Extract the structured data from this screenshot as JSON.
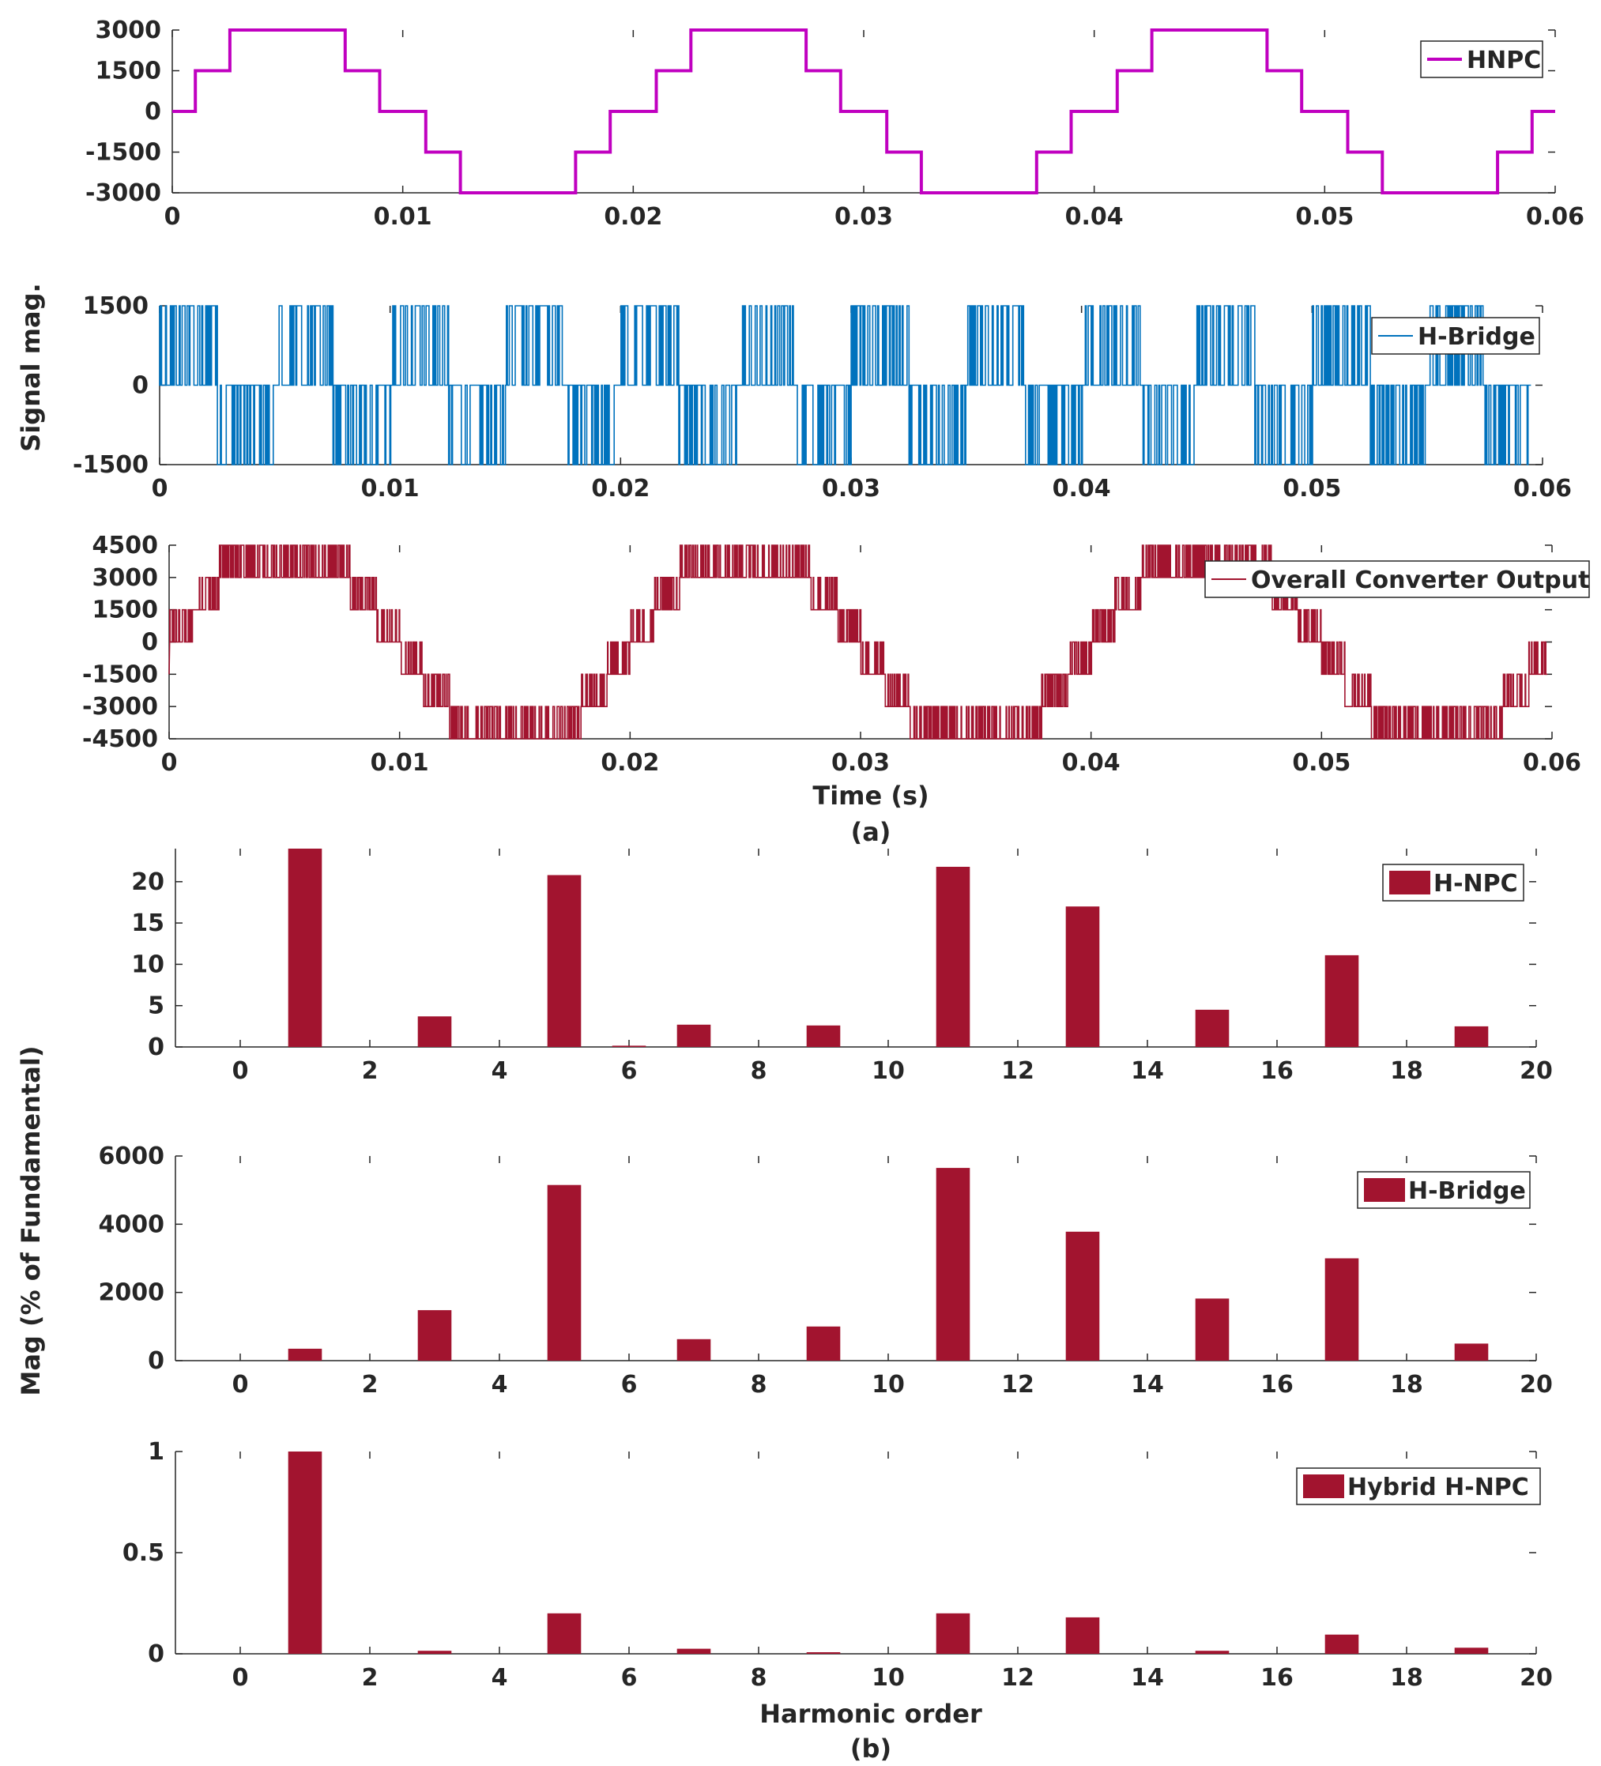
{
  "figure": {
    "caption_a": "(a)",
    "caption_b": "(b)",
    "shared_ylabel_a": "Signal mag.",
    "shared_ylabel_b": "Mag (% of Fundamental)"
  },
  "chart_data": [
    {
      "id": "hnpc",
      "type": "line",
      "title": "",
      "legend": "HNPC",
      "legend_position": "top-right",
      "color": "#c000c0",
      "xlabel": "",
      "ylabel": "",
      "xlim": [
        0,
        0.06
      ],
      "ylim": [
        -3000,
        3000
      ],
      "xticks": [
        0,
        0.01,
        0.02,
        0.03,
        0.04,
        0.05,
        0.06
      ],
      "xtick_labels": [
        "0",
        "0.01",
        "0.02",
        "0.03",
        "0.04",
        "0.05",
        "0.06"
      ],
      "yticks": [
        3000,
        1500,
        0,
        -1500,
        -3000
      ],
      "ytick_labels": [
        "3000",
        "1500",
        "0",
        "-1500",
        "-3000"
      ],
      "period_s": 0.02,
      "step_levels": [
        0,
        1500,
        3000,
        1500,
        0,
        -1500,
        -3000,
        -1500,
        0
      ],
      "step_switch_times_s": [
        0.001,
        0.0025,
        0.0075,
        0.009,
        0.011,
        0.0125,
        0.0175,
        0.019
      ]
    },
    {
      "id": "hbridge",
      "type": "line",
      "title": "",
      "legend": "H-Bridge",
      "legend_position": "top-right",
      "color": "#0072bd",
      "xlabel": "",
      "ylabel": "Signal mag.",
      "xlim": [
        0,
        0.06
      ],
      "ylim": [
        -1500,
        1500
      ],
      "xticks": [
        0,
        0.01,
        0.02,
        0.03,
        0.04,
        0.05,
        0.06
      ],
      "xtick_labels": [
        "0",
        "0.01",
        "0.02",
        "0.03",
        "0.04",
        "0.05",
        "0.06"
      ],
      "yticks": [
        1500,
        0,
        -1500
      ],
      "ytick_labels": [
        "1500",
        "0",
        "-1500"
      ],
      "pulse_amplitude": 1500,
      "description_levels": [
        -1500,
        0,
        1500
      ]
    },
    {
      "id": "overall",
      "type": "line",
      "title": "",
      "legend": "Overall Converter Output",
      "legend_position": "top-right",
      "color": "#a2142f",
      "xlabel": "Time (s)",
      "ylabel": "",
      "xlim": [
        0,
        0.06
      ],
      "ylim": [
        -4500,
        4500
      ],
      "xticks": [
        0,
        0.01,
        0.02,
        0.03,
        0.04,
        0.05,
        0.06
      ],
      "xtick_labels": [
        "0",
        "0.01",
        "0.02",
        "0.03",
        "0.04",
        "0.05",
        "0.06"
      ],
      "yticks": [
        4500,
        3000,
        1500,
        0,
        -1500,
        -3000,
        -4500
      ],
      "ytick_labels": [
        "4500",
        "3000",
        "1500",
        "0",
        "-1500",
        "-3000",
        "-4500"
      ],
      "period_s": 0.02,
      "levels": [
        -4500,
        -3000,
        -1500,
        0,
        1500,
        3000,
        4500
      ]
    },
    {
      "id": "spec_hnpc",
      "type": "bar",
      "title": "",
      "legend": "H-NPC",
      "legend_position": "top-right",
      "color": "#a2142f",
      "xlabel": "",
      "ylabel": "",
      "xlim": [
        -1,
        20
      ],
      "ylim": [
        0,
        24
      ],
      "xticks": [
        0,
        2,
        4,
        6,
        8,
        10,
        12,
        14,
        16,
        18,
        20
      ],
      "xtick_labels": [
        "0",
        "2",
        "4",
        "6",
        "8",
        "10",
        "12",
        "14",
        "16",
        "18",
        "20"
      ],
      "yticks": [
        0,
        5,
        10,
        15,
        20
      ],
      "ytick_labels": [
        "0",
        "5",
        "10",
        "15",
        "20"
      ],
      "categories": [
        0,
        1,
        2,
        3,
        4,
        5,
        6,
        7,
        8,
        9,
        10,
        11,
        12,
        13,
        14,
        15,
        16,
        17,
        18,
        19
      ],
      "values": [
        0,
        24,
        0,
        3.7,
        0,
        20.8,
        0.15,
        2.7,
        0,
        2.6,
        0,
        21.8,
        0,
        17,
        0,
        4.5,
        0,
        11.1,
        0,
        2.5
      ]
    },
    {
      "id": "spec_hbridge",
      "type": "bar",
      "title": "",
      "legend": "H-Bridge",
      "legend_position": "top-right",
      "color": "#a2142f",
      "xlabel": "",
      "ylabel": "Mag (% of Fundamental)",
      "xlim": [
        -1,
        20
      ],
      "ylim": [
        0,
        6000
      ],
      "xticks": [
        0,
        2,
        4,
        6,
        8,
        10,
        12,
        14,
        16,
        18,
        20
      ],
      "xtick_labels": [
        "0",
        "2",
        "4",
        "6",
        "8",
        "10",
        "12",
        "14",
        "16",
        "18",
        "20"
      ],
      "yticks": [
        0,
        2000,
        4000,
        6000
      ],
      "ytick_labels": [
        "0",
        "2000",
        "4000",
        "6000"
      ],
      "categories": [
        0,
        1,
        2,
        3,
        4,
        5,
        6,
        7,
        8,
        9,
        10,
        11,
        12,
        13,
        14,
        15,
        16,
        17,
        18,
        19
      ],
      "values": [
        0,
        350,
        0,
        1480,
        0,
        5150,
        0,
        630,
        0,
        1000,
        0,
        5650,
        0,
        3780,
        0,
        1820,
        0,
        3000,
        0,
        500
      ]
    },
    {
      "id": "spec_hybrid",
      "type": "bar",
      "title": "",
      "legend": "Hybrid H-NPC",
      "legend_position": "top-right",
      "color": "#a2142f",
      "xlabel": "Harmonic order",
      "ylabel": "",
      "xlim": [
        -1,
        20
      ],
      "ylim": [
        0,
        1
      ],
      "xticks": [
        0,
        2,
        4,
        6,
        8,
        10,
        12,
        14,
        16,
        18,
        20
      ],
      "xtick_labels": [
        "0",
        "2",
        "4",
        "6",
        "8",
        "10",
        "12",
        "14",
        "16",
        "18",
        "20"
      ],
      "yticks": [
        0,
        0.5,
        1
      ],
      "ytick_labels": [
        "0",
        "0.5",
        "1"
      ],
      "categories": [
        0,
        1,
        2,
        3,
        4,
        5,
        6,
        7,
        8,
        9,
        10,
        11,
        12,
        13,
        14,
        15,
        16,
        17,
        18,
        19
      ],
      "values": [
        0,
        1,
        0,
        0.015,
        0,
        0.2,
        0,
        0.025,
        0,
        0.008,
        0,
        0.2,
        0,
        0.18,
        0,
        0.015,
        0,
        0.095,
        0,
        0.03
      ]
    }
  ]
}
